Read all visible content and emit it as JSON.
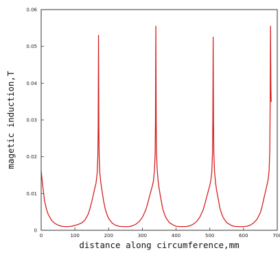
{
  "chart_data": {
    "type": "line",
    "title": "",
    "xlabel": "distance along circumference,mm",
    "ylabel": "magetic induction,T",
    "xlim": [
      0,
      700
    ],
    "ylim": [
      0,
      0.06
    ],
    "x_ticks": [
      "0",
      "100",
      "200",
      "300",
      "400",
      "500",
      "600",
      "700"
    ],
    "y_ticks": [
      "0",
      "0.01",
      "0.02",
      "0.03",
      "0.04",
      "0.05",
      "0.06"
    ],
    "grid": false,
    "legend": "none",
    "line_color": "#d42020",
    "series": [
      {
        "x": [
          0,
          3,
          6,
          10,
          15,
          20,
          30,
          40,
          50,
          60,
          70,
          80,
          90,
          100,
          110,
          120,
          130,
          140,
          145,
          150,
          155,
          160,
          163,
          166,
          168,
          169,
          170,
          171,
          172,
          174,
          177,
          180,
          185,
          190,
          195,
          200,
          210,
          220,
          230,
          240,
          250,
          260,
          270,
          280,
          290,
          300,
          310,
          315,
          320,
          325,
          330,
          333,
          336,
          338,
          339,
          340,
          341,
          342,
          344,
          347,
          350,
          355,
          360,
          365,
          370,
          380,
          390,
          400,
          410,
          420,
          430,
          440,
          450,
          460,
          470,
          480,
          485,
          490,
          495,
          500,
          503,
          506,
          508,
          509,
          510,
          511,
          512,
          514,
          517,
          520,
          525,
          530,
          535,
          540,
          550,
          560,
          570,
          580,
          590,
          600,
          610,
          620,
          630,
          640,
          650,
          655,
          660,
          665,
          670,
          673,
          676,
          678,
          679,
          680,
          681,
          682
        ],
        "y": [
          0.016,
          0.0135,
          0.011,
          0.008,
          0.006,
          0.0045,
          0.0028,
          0.0019,
          0.0014,
          0.0011,
          0.001,
          0.001,
          0.0011,
          0.0013,
          0.0016,
          0.002,
          0.0028,
          0.0045,
          0.006,
          0.0078,
          0.0098,
          0.0118,
          0.013,
          0.0155,
          0.02,
          0.028,
          0.053,
          0.028,
          0.02,
          0.0155,
          0.0128,
          0.011,
          0.008,
          0.0058,
          0.0043,
          0.0032,
          0.002,
          0.0014,
          0.0011,
          0.001,
          0.001,
          0.001,
          0.0012,
          0.0016,
          0.0023,
          0.0035,
          0.0055,
          0.007,
          0.0088,
          0.0105,
          0.0122,
          0.0135,
          0.0165,
          0.021,
          0.03,
          0.0555,
          0.03,
          0.021,
          0.0165,
          0.0132,
          0.0112,
          0.0085,
          0.006,
          0.0045,
          0.0034,
          0.0021,
          0.0015,
          0.0011,
          0.001,
          0.001,
          0.001,
          0.0012,
          0.0016,
          0.0023,
          0.0035,
          0.0055,
          0.007,
          0.0088,
          0.0105,
          0.0122,
          0.0135,
          0.016,
          0.021,
          0.03,
          0.0525,
          0.03,
          0.021,
          0.016,
          0.013,
          0.011,
          0.0085,
          0.006,
          0.0045,
          0.0034,
          0.0021,
          0.0015,
          0.0011,
          0.001,
          0.001,
          0.001,
          0.0011,
          0.0014,
          0.002,
          0.003,
          0.0048,
          0.0065,
          0.0085,
          0.0105,
          0.0125,
          0.0138,
          0.0165,
          0.022,
          0.035,
          0.0555,
          0.039,
          0.035
        ]
      }
    ]
  }
}
